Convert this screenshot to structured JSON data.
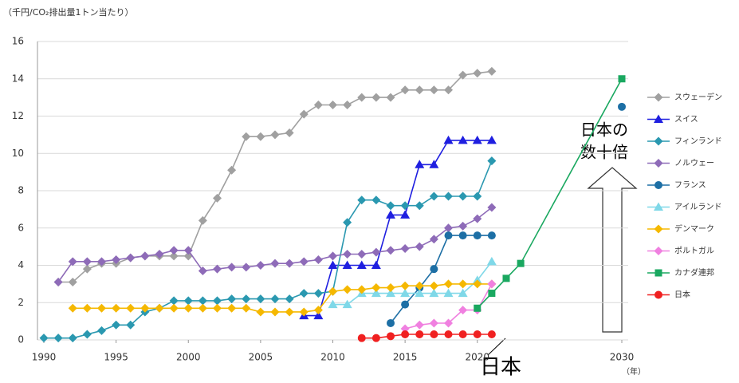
{
  "chart_data": {
    "type": "line",
    "ylabel": "（千円/CO₂排出量1トン当たり）",
    "xlabel": "（年）",
    "annotations": [
      "日本の",
      "数十倍",
      "日本"
    ],
    "x": [
      1990,
      1991,
      1992,
      1993,
      1994,
      1995,
      1996,
      1997,
      1998,
      1999,
      2000,
      2001,
      2002,
      2003,
      2004,
      2005,
      2006,
      2007,
      2008,
      2009,
      2010,
      2011,
      2012,
      2013,
      2014,
      2015,
      2016,
      2017,
      2018,
      2019,
      2020,
      2021,
      2022,
      2023,
      2030
    ],
    "xlim": [
      1990,
      2030
    ],
    "xticks": [
      1990,
      1995,
      2000,
      2005,
      2010,
      2015,
      2020,
      2030
    ],
    "ylim": [
      0,
      16
    ],
    "yticks": [
      0,
      2,
      4,
      6,
      8,
      10,
      12,
      14,
      16
    ],
    "grid": true,
    "legend": "right",
    "series": [
      {
        "name": "スウェーデン",
        "color": "#a0a0a0",
        "marker": "diamond",
        "values": [
          null,
          3.1,
          3.1,
          3.8,
          4.1,
          4.1,
          4.4,
          4.5,
          4.5,
          4.5,
          4.5,
          6.4,
          7.6,
          9.1,
          10.9,
          10.9,
          11.0,
          11.1,
          12.1,
          12.6,
          12.6,
          12.6,
          13.0,
          13.0,
          13.0,
          13.4,
          13.4,
          13.4,
          13.4,
          14.2,
          14.3,
          14.4,
          null,
          null,
          null
        ]
      },
      {
        "name": "スイス",
        "color": "#1f1fe0",
        "marker": "triangle",
        "values": [
          null,
          null,
          null,
          null,
          null,
          null,
          null,
          null,
          null,
          null,
          null,
          null,
          null,
          null,
          null,
          null,
          null,
          null,
          1.3,
          1.3,
          4.0,
          4.0,
          4.0,
          4.0,
          6.7,
          6.7,
          9.4,
          9.4,
          10.7,
          10.7,
          10.7,
          10.7,
          null,
          null,
          null
        ]
      },
      {
        "name": "フィンランド",
        "color": "#2a98b0",
        "marker": "diamond",
        "values": [
          0.1,
          0.1,
          0.1,
          0.3,
          0.5,
          0.8,
          0.8,
          1.5,
          1.7,
          2.1,
          2.1,
          2.1,
          2.1,
          2.2,
          2.2,
          2.2,
          2.2,
          2.2,
          2.5,
          2.5,
          2.6,
          6.3,
          7.5,
          7.5,
          7.2,
          7.2,
          7.2,
          7.7,
          7.7,
          7.7,
          7.7,
          9.6,
          null,
          null,
          null
        ]
      },
      {
        "name": "ノルウェー",
        "color": "#8e6bb8",
        "marker": "diamond",
        "values": [
          null,
          3.1,
          4.2,
          4.2,
          4.2,
          4.3,
          4.4,
          4.5,
          4.6,
          4.8,
          4.8,
          3.7,
          3.8,
          3.9,
          3.9,
          4.0,
          4.1,
          4.1,
          4.2,
          4.3,
          4.5,
          4.6,
          4.6,
          4.7,
          4.8,
          4.9,
          5.0,
          5.4,
          6.0,
          6.1,
          6.5,
          7.1,
          null,
          null,
          null
        ]
      },
      {
        "name": "フランス",
        "color": "#1d6fa5",
        "marker": "circle",
        "values": [
          null,
          null,
          null,
          null,
          null,
          null,
          null,
          null,
          null,
          null,
          null,
          null,
          null,
          null,
          null,
          null,
          null,
          null,
          null,
          null,
          null,
          null,
          null,
          null,
          0.9,
          1.9,
          2.8,
          3.8,
          5.6,
          5.6,
          5.6,
          5.6,
          null,
          null,
          12.5
        ]
      },
      {
        "name": "アイルランド",
        "color": "#7fd8e8",
        "marker": "triangle",
        "values": [
          null,
          null,
          null,
          null,
          null,
          null,
          null,
          null,
          null,
          null,
          null,
          null,
          null,
          null,
          null,
          null,
          null,
          null,
          null,
          null,
          1.9,
          1.9,
          2.5,
          2.5,
          2.5,
          2.5,
          2.5,
          2.5,
          2.5,
          2.5,
          3.2,
          4.2,
          null,
          null,
          null
        ]
      },
      {
        "name": "デンマーク",
        "color": "#f5b800",
        "marker": "diamond",
        "values": [
          null,
          null,
          1.7,
          1.7,
          1.7,
          1.7,
          1.7,
          1.7,
          1.7,
          1.7,
          1.7,
          1.7,
          1.7,
          1.7,
          1.7,
          1.5,
          1.5,
          1.5,
          1.5,
          1.6,
          2.6,
          2.7,
          2.7,
          2.8,
          2.8,
          2.9,
          2.9,
          2.9,
          3.0,
          3.0,
          3.0,
          3.0,
          null,
          null,
          null
        ]
      },
      {
        "name": "ポルトガル",
        "color": "#f080e0",
        "marker": "diamond",
        "values": [
          null,
          null,
          null,
          null,
          null,
          null,
          null,
          null,
          null,
          null,
          null,
          null,
          null,
          null,
          null,
          null,
          null,
          null,
          null,
          null,
          null,
          null,
          null,
          null,
          null,
          0.6,
          0.8,
          0.9,
          0.9,
          1.6,
          1.6,
          3.0,
          null,
          null,
          null
        ]
      },
      {
        "name": "カナダ連邦",
        "color": "#1aa860",
        "marker": "square",
        "values": [
          null,
          null,
          null,
          null,
          null,
          null,
          null,
          null,
          null,
          null,
          null,
          null,
          null,
          null,
          null,
          null,
          null,
          null,
          null,
          null,
          null,
          null,
          null,
          null,
          null,
          null,
          null,
          null,
          null,
          null,
          1.7,
          2.5,
          3.3,
          4.1,
          14.0
        ]
      },
      {
        "name": "日本",
        "color": "#f02020",
        "marker": "circle",
        "values": [
          null,
          null,
          null,
          null,
          null,
          null,
          null,
          null,
          null,
          null,
          null,
          null,
          null,
          null,
          null,
          null,
          null,
          null,
          null,
          null,
          null,
          null,
          0.1,
          0.1,
          0.2,
          0.3,
          0.3,
          0.3,
          0.3,
          0.3,
          0.3,
          0.3,
          null,
          null,
          null
        ]
      }
    ]
  }
}
